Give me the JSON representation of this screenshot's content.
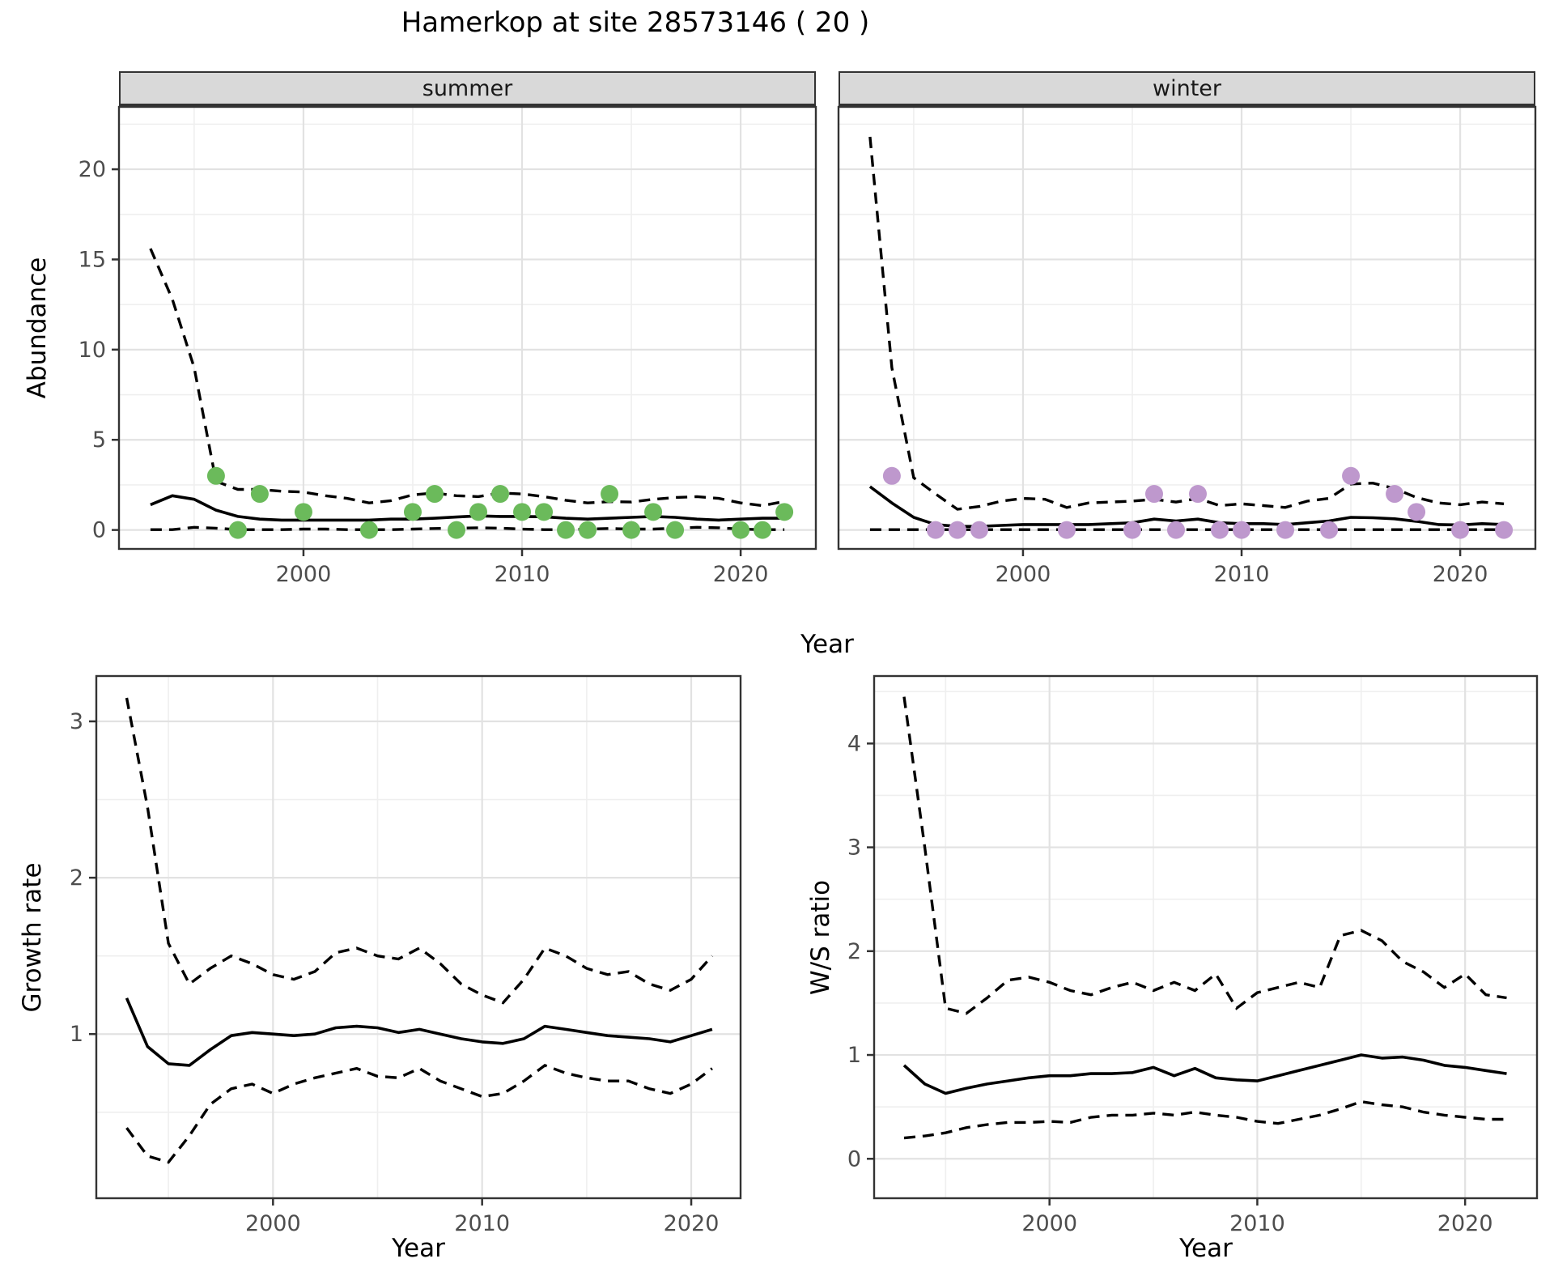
{
  "title": "Hamerkop at site 28573146 ( 20 )",
  "axis": {
    "x_label": "Year",
    "abundance_label": "Abundance",
    "growth_label": "Growth rate",
    "ws_label": "W/S ratio"
  },
  "facets": {
    "summer": "summer",
    "winter": "winter"
  },
  "colors": {
    "summer_point": "#6BBA5B",
    "winter_point": "#BE98CD",
    "line": "#000000",
    "strip_bg": "#D9D9D9",
    "grid_major": "#E2E2E2",
    "grid_minor": "#EFEFEF",
    "border": "#333333",
    "tick": "#333333",
    "tick_text": "#4D4D4D"
  },
  "chart_data": [
    {
      "id": "abundance_summer",
      "type": "line",
      "facet": "summer",
      "title": "summer abundance with 95% CI and observations",
      "xlabel": "Year",
      "ylabel": "Abundance",
      "xlim": [
        1991.56,
        2023.44
      ],
      "ylim": [
        -1.05,
        23.46
      ],
      "x_ticks": [
        2000,
        2010,
        2020
      ],
      "x_minor": [
        1995,
        2005,
        2015
      ],
      "y_ticks": [
        0,
        5,
        10,
        15,
        20
      ],
      "y_minor": [
        2.5,
        7.5,
        12.5,
        17.5,
        22.5
      ],
      "years": [
        1993,
        1994,
        1995,
        1996,
        1997,
        1998,
        1999,
        2000,
        2001,
        2002,
        2003,
        2004,
        2005,
        2006,
        2007,
        2008,
        2009,
        2010,
        2011,
        2012,
        2013,
        2014,
        2015,
        2016,
        2017,
        2018,
        2019,
        2020,
        2021,
        2022
      ],
      "median": [
        1.4,
        1.9,
        1.7,
        1.1,
        0.75,
        0.6,
        0.55,
        0.55,
        0.55,
        0.55,
        0.55,
        0.6,
        0.6,
        0.65,
        0.72,
        0.78,
        0.75,
        0.75,
        0.73,
        0.65,
        0.6,
        0.65,
        0.7,
        0.75,
        0.7,
        0.6,
        0.55,
        0.6,
        0.65,
        0.65
      ],
      "upper": [
        15.6,
        12.8,
        9.0,
        2.7,
        2.25,
        2.25,
        2.15,
        2.1,
        1.9,
        1.75,
        1.5,
        1.62,
        1.95,
        2.05,
        1.9,
        1.85,
        2.05,
        2.0,
        1.85,
        1.65,
        1.5,
        1.57,
        1.55,
        1.7,
        1.8,
        1.85,
        1.75,
        1.5,
        1.35,
        1.58
      ],
      "lower": [
        0.02,
        0.02,
        0.15,
        0.1,
        0.02,
        0.02,
        0.02,
        0.05,
        0.05,
        0.02,
        0.02,
        0.02,
        0.05,
        0.08,
        0.1,
        0.12,
        0.1,
        0.05,
        0.02,
        0.02,
        0.05,
        0.08,
        0.05,
        0.05,
        0.1,
        0.15,
        0.12,
        0.05,
        0.02,
        0.02
      ],
      "points": {
        "years": [
          1996,
          1997,
          1998,
          2000,
          2003,
          2005,
          2006,
          2007,
          2008,
          2009,
          2010,
          2011,
          2012,
          2013,
          2014,
          2015,
          2016,
          2017,
          2020,
          2021,
          2022
        ],
        "values": [
          3,
          0,
          2,
          1,
          0,
          1,
          2,
          0,
          1,
          2,
          1,
          1,
          0,
          0,
          2,
          0,
          1,
          0,
          0,
          0,
          1
        ]
      },
      "point_color": "#6BBA5B"
    },
    {
      "id": "abundance_winter",
      "type": "line",
      "facet": "winter",
      "title": "winter abundance with 95% CI and observations",
      "xlabel": "Year",
      "ylabel": "Abundance",
      "xlim": [
        1991.56,
        2023.44
      ],
      "ylim": [
        -1.05,
        23.46
      ],
      "x_ticks": [
        2000,
        2010,
        2020
      ],
      "x_minor": [
        1995,
        2005,
        2015
      ],
      "y_ticks": [
        0,
        5,
        10,
        15,
        20
      ],
      "y_minor": [
        2.5,
        7.5,
        12.5,
        17.5,
        22.5
      ],
      "show_y_labels": false,
      "years": [
        1993,
        1994,
        1995,
        1996,
        1997,
        1998,
        1999,
        2000,
        2001,
        2002,
        2003,
        2004,
        2005,
        2006,
        2007,
        2008,
        2009,
        2010,
        2011,
        2012,
        2013,
        2014,
        2015,
        2016,
        2017,
        2018,
        2019,
        2020,
        2021,
        2022
      ],
      "median": [
        2.4,
        1.5,
        0.7,
        0.3,
        0.2,
        0.2,
        0.25,
        0.3,
        0.3,
        0.3,
        0.3,
        0.35,
        0.4,
        0.6,
        0.5,
        0.6,
        0.4,
        0.35,
        0.35,
        0.3,
        0.4,
        0.5,
        0.7,
        0.68,
        0.62,
        0.48,
        0.3,
        0.28,
        0.35,
        0.3
      ],
      "upper": [
        21.8,
        9.0,
        2.9,
        2.0,
        1.15,
        1.3,
        1.6,
        1.75,
        1.7,
        1.25,
        1.5,
        1.55,
        1.6,
        1.7,
        1.55,
        1.75,
        1.35,
        1.45,
        1.35,
        1.25,
        1.6,
        1.75,
        2.55,
        2.6,
        2.3,
        1.8,
        1.5,
        1.4,
        1.55,
        1.45
      ],
      "lower": [
        0.02,
        0.02,
        0.02,
        0.02,
        0.02,
        0.02,
        0.02,
        0.02,
        0.02,
        0.02,
        0.02,
        0.02,
        0.02,
        0.02,
        0.02,
        0.02,
        0.02,
        0.02,
        0.02,
        0.02,
        0.02,
        0.02,
        0.02,
        0.02,
        0.02,
        0.02,
        0.02,
        0.02,
        0.02,
        0.02
      ],
      "points": {
        "years": [
          1994,
          1996,
          1997,
          1998,
          2002,
          2005,
          2006,
          2007,
          2008,
          2009,
          2010,
          2012,
          2014,
          2015,
          2017,
          2018,
          2020,
          2022
        ],
        "values": [
          3,
          0,
          0,
          0,
          0,
          0,
          2,
          0,
          2,
          0,
          0,
          0,
          0,
          3,
          2,
          1,
          0,
          0
        ]
      },
      "point_color": "#BE98CD"
    },
    {
      "id": "growth_rate",
      "type": "line",
      "facet": null,
      "title": "growth rate with 95% CI",
      "xlabel": "Year",
      "ylabel": "Growth rate",
      "xlim": [
        1991.55,
        2022.36
      ],
      "ylim": [
        -0.05,
        3.29
      ],
      "x_ticks": [
        2000,
        2010,
        2020
      ],
      "x_minor": [
        1995,
        2005,
        2015
      ],
      "y_ticks": [
        1,
        2,
        3
      ],
      "y_minor": [
        0.5,
        1.5,
        2.5
      ],
      "years": [
        1993,
        1994,
        1995,
        1996,
        1997,
        1998,
        1999,
        2000,
        2001,
        2002,
        2003,
        2004,
        2005,
        2006,
        2007,
        2008,
        2009,
        2010,
        2011,
        2012,
        2013,
        2014,
        2015,
        2016,
        2017,
        2018,
        2019,
        2020,
        2021
      ],
      "median": [
        1.23,
        0.92,
        0.81,
        0.8,
        0.9,
        0.99,
        1.01,
        1.0,
        0.99,
        1.0,
        1.04,
        1.05,
        1.04,
        1.01,
        1.03,
        1.0,
        0.97,
        0.95,
        0.94,
        0.97,
        1.05,
        1.03,
        1.01,
        0.99,
        0.98,
        0.97,
        0.95,
        0.99,
        1.03
      ],
      "upper": [
        3.15,
        2.45,
        1.58,
        1.32,
        1.42,
        1.5,
        1.45,
        1.38,
        1.35,
        1.4,
        1.52,
        1.55,
        1.5,
        1.48,
        1.55,
        1.45,
        1.32,
        1.25,
        1.2,
        1.35,
        1.55,
        1.5,
        1.42,
        1.38,
        1.4,
        1.32,
        1.28,
        1.35,
        1.5
      ],
      "lower": [
        0.4,
        0.22,
        0.18,
        0.35,
        0.55,
        0.65,
        0.68,
        0.62,
        0.68,
        0.72,
        0.75,
        0.78,
        0.73,
        0.72,
        0.78,
        0.7,
        0.65,
        0.6,
        0.62,
        0.7,
        0.8,
        0.75,
        0.72,
        0.7,
        0.7,
        0.65,
        0.62,
        0.68,
        0.78
      ],
      "points": null,
      "point_color": null
    },
    {
      "id": "ws_ratio",
      "type": "line",
      "facet": null,
      "title": "winter/summer ratio with 95% CI",
      "xlabel": "Year",
      "ylabel": "W/S ratio",
      "xlim": [
        1991.56,
        2023.46
      ],
      "ylim": [
        -0.38,
        4.65
      ],
      "x_ticks": [
        2000,
        2010,
        2020
      ],
      "x_minor": [
        1995,
        2005,
        2015
      ],
      "y_ticks": [
        0,
        1,
        2,
        3,
        4
      ],
      "y_minor": [
        0.5,
        1.5,
        2.5,
        3.5,
        4.5
      ],
      "years": [
        1993,
        1994,
        1995,
        1996,
        1997,
        1998,
        1999,
        2000,
        2001,
        2002,
        2003,
        2004,
        2005,
        2006,
        2007,
        2008,
        2009,
        2010,
        2011,
        2012,
        2013,
        2014,
        2015,
        2016,
        2017,
        2018,
        2019,
        2020,
        2021,
        2022
      ],
      "median": [
        0.9,
        0.72,
        0.63,
        0.68,
        0.72,
        0.75,
        0.78,
        0.8,
        0.8,
        0.82,
        0.82,
        0.83,
        0.88,
        0.8,
        0.87,
        0.78,
        0.76,
        0.75,
        0.8,
        0.85,
        0.9,
        0.95,
        1.0,
        0.97,
        0.98,
        0.95,
        0.9,
        0.88,
        0.85,
        0.82
      ],
      "upper": [
        4.45,
        3.0,
        1.45,
        1.4,
        1.55,
        1.72,
        1.75,
        1.7,
        1.62,
        1.58,
        1.65,
        1.7,
        1.62,
        1.7,
        1.62,
        1.78,
        1.45,
        1.6,
        1.65,
        1.7,
        1.65,
        2.15,
        2.2,
        2.1,
        1.9,
        1.8,
        1.65,
        1.78,
        1.58,
        1.55
      ],
      "lower": [
        0.2,
        0.22,
        0.25,
        0.3,
        0.33,
        0.35,
        0.35,
        0.36,
        0.35,
        0.4,
        0.42,
        0.42,
        0.44,
        0.42,
        0.45,
        0.42,
        0.4,
        0.36,
        0.34,
        0.38,
        0.42,
        0.48,
        0.55,
        0.52,
        0.5,
        0.45,
        0.42,
        0.4,
        0.38,
        0.38
      ],
      "points": null,
      "point_color": null
    }
  ]
}
